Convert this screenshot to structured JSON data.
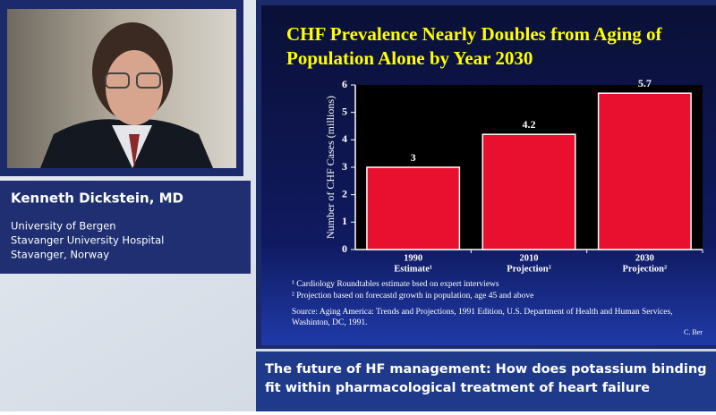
{
  "speaker": {
    "name": "Kenneth Dickstein, MD",
    "affiliation": [
      "University of Bergen",
      "Stavanger University Hospital",
      "Stavanger, Norway"
    ]
  },
  "chart_data": {
    "type": "bar",
    "title": [
      "CHF Prevalence Nearly Doubles from Aging of",
      "Population Alone by Year 2030"
    ],
    "y_label": "Number of CHF Cases (millions)",
    "categories": [
      "1990",
      "2010",
      "2030"
    ],
    "category_notes": [
      "Estimate¹",
      "Projection²",
      "Projection²"
    ],
    "values": [
      3,
      4.2,
      5.7
    ],
    "color": "#e8102e",
    "ylim": [
      0,
      6
    ],
    "yticks": [
      0,
      1,
      2,
      3,
      4,
      5,
      6
    ],
    "footnotes": [
      "¹ Cardiology Roundtables estimate bsed on expert interviews",
      "² Projection based on forecastd growth in population, age 45 and above"
    ],
    "source": [
      "Source: Aging America:  Trends and Projections, 1991 Edition, U.S. Department of Health and Human Services,",
      "Washinton, DC, 1991."
    ],
    "credit": "C. Ber"
  },
  "banner": {
    "title": [
      "The future of HF management: How does potassium binding",
      "fit within pharmacological treatment of heart failure"
    ]
  }
}
